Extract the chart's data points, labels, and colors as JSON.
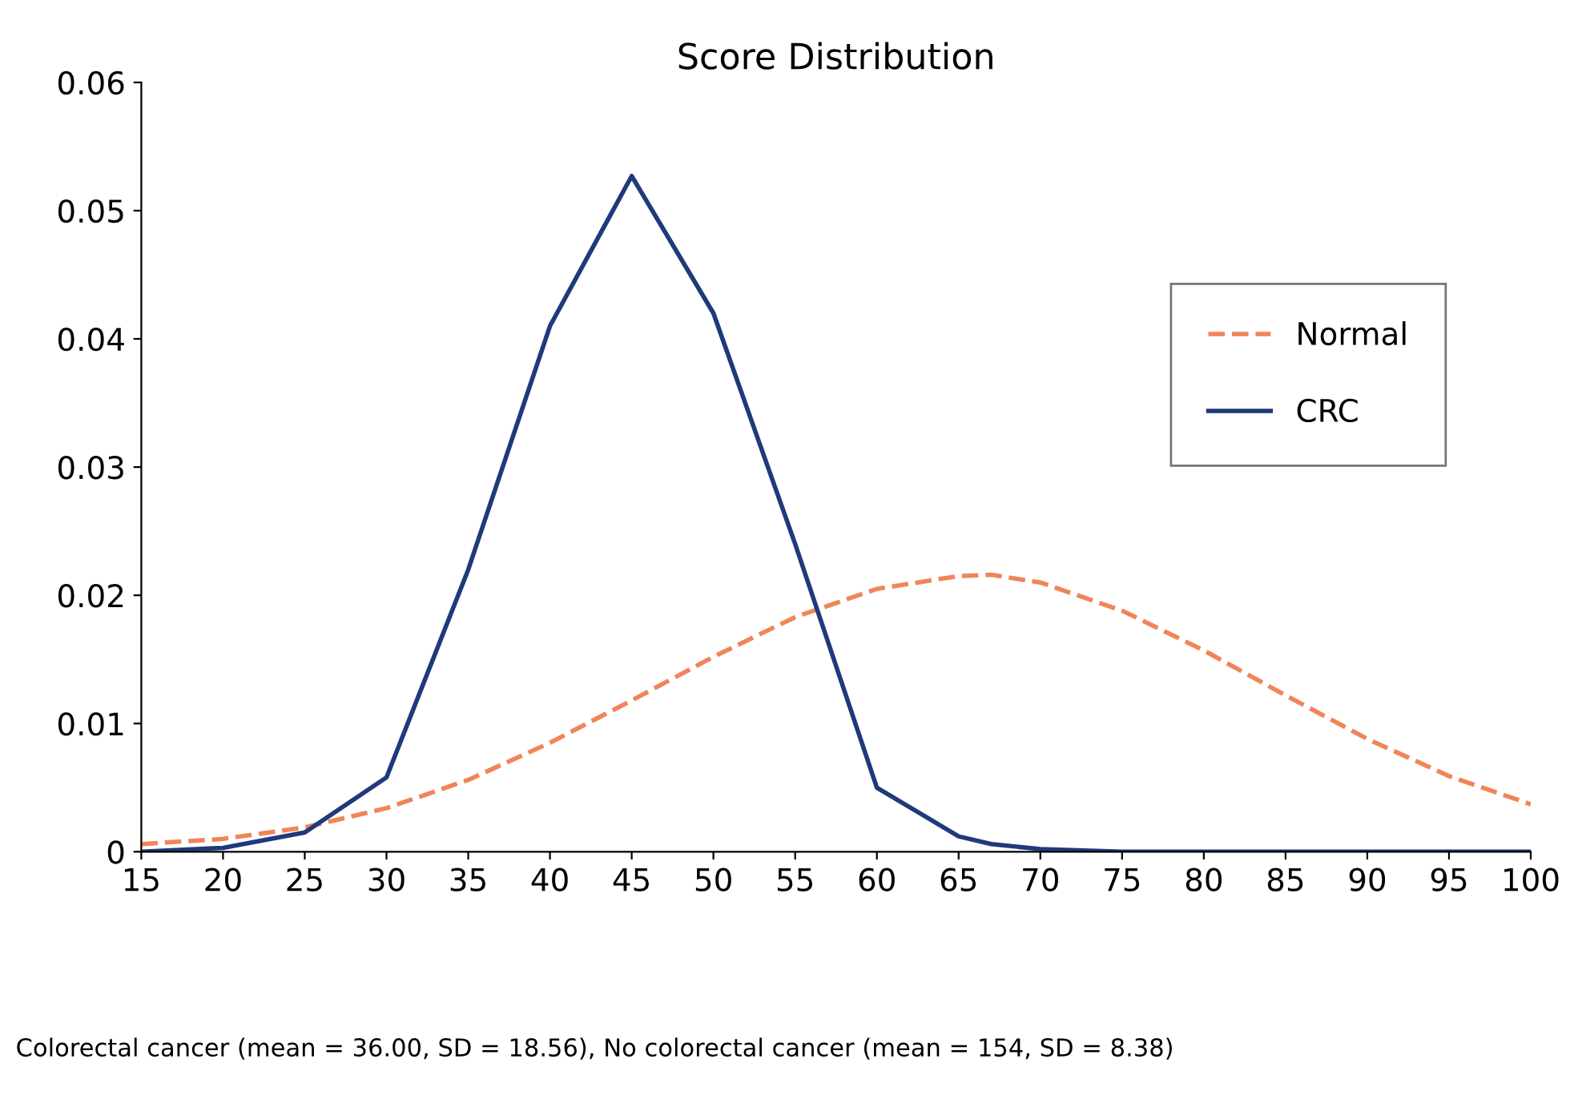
{
  "chart_data": {
    "type": "line",
    "title": "Score Distribution",
    "x": [
      15,
      20,
      25,
      30,
      35,
      40,
      45,
      50,
      55,
      60,
      65,
      67,
      70,
      75,
      80,
      85,
      90,
      95,
      100
    ],
    "series": [
      {
        "name": "Normal",
        "color": "#f0855a",
        "line_style": "dashed",
        "values": [
          0.0006,
          0.001,
          0.0019,
          0.0034,
          0.0056,
          0.0085,
          0.0118,
          0.0152,
          0.0183,
          0.0205,
          0.0215,
          0.0216,
          0.021,
          0.0188,
          0.0157,
          0.0122,
          0.0088,
          0.0059,
          0.0037
        ]
      },
      {
        "name": "CRC",
        "color": "#1f3a7a",
        "line_style": "solid",
        "values": [
          0,
          0.0003,
          0.0015,
          0.0058,
          0.022,
          0.041,
          0.0527,
          0.042,
          0.024,
          0.005,
          0.0012,
          0.0006,
          0.0002,
          0,
          0,
          0,
          0,
          0,
          0
        ]
      }
    ],
    "xlim": [
      15,
      100
    ],
    "xticks": [
      15,
      20,
      25,
      30,
      35,
      40,
      45,
      50,
      55,
      60,
      65,
      70,
      75,
      80,
      85,
      90,
      95,
      100
    ],
    "ylim": [
      0,
      0.06
    ],
    "yticks": [
      0,
      0.01,
      0.02,
      0.03,
      0.04,
      0.05,
      0.06
    ],
    "grid": false,
    "legend": "right",
    "marker": "none",
    "annotations": [
      "Colorectal cancer (mean = 36.00, SD = 18.56), No colorectal cancer (mean = 154, SD = 8.38)"
    ]
  }
}
